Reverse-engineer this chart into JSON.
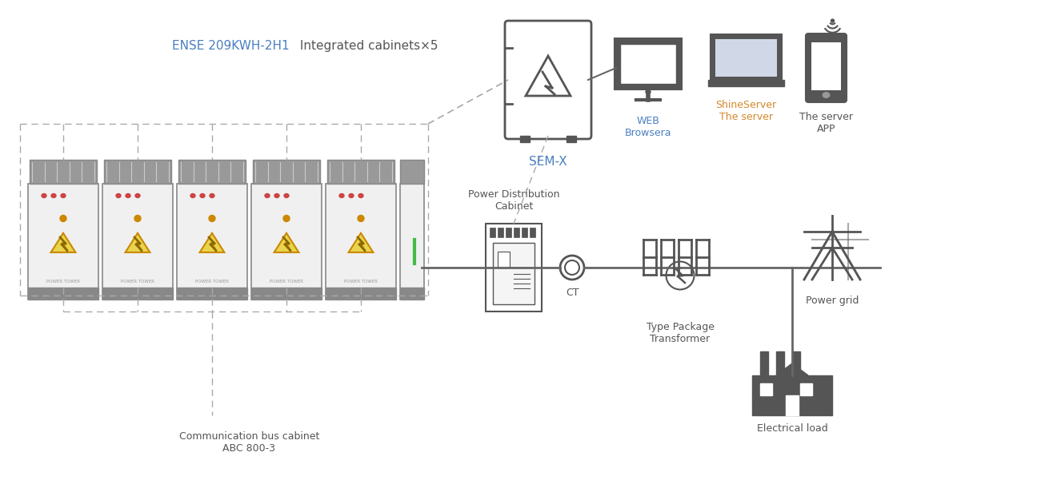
{
  "title": "",
  "bg_color": "#ffffff",
  "label_color": "#555555",
  "blue_color": "#4a90d9",
  "orange_color": "#e8a020",
  "dashed_color": "#999999",
  "line_color": "#555555",
  "cabinet_label": "ENSE 209KWH-2H1 Integrated cabinets×5",
  "cabinet_label_blue": "ENSE 209KWH-2H1",
  "cabinet_label_black": " Integrated cabinets×5",
  "semx_label": "SEM-X",
  "web_label": "WEB\nBrowsera",
  "shine_label": "ShineServer\nThe server",
  "server_label": "The server\nAPP",
  "pdc_label": "Power Distribution\nCabinet",
  "ct_label": "CT",
  "transformer_label": "Type Package\nTransformer",
  "powergrid_label": "Power grid",
  "eload_label": "Electrical load",
  "comm_label": "Communication bus cabinet\nABC 800-3"
}
